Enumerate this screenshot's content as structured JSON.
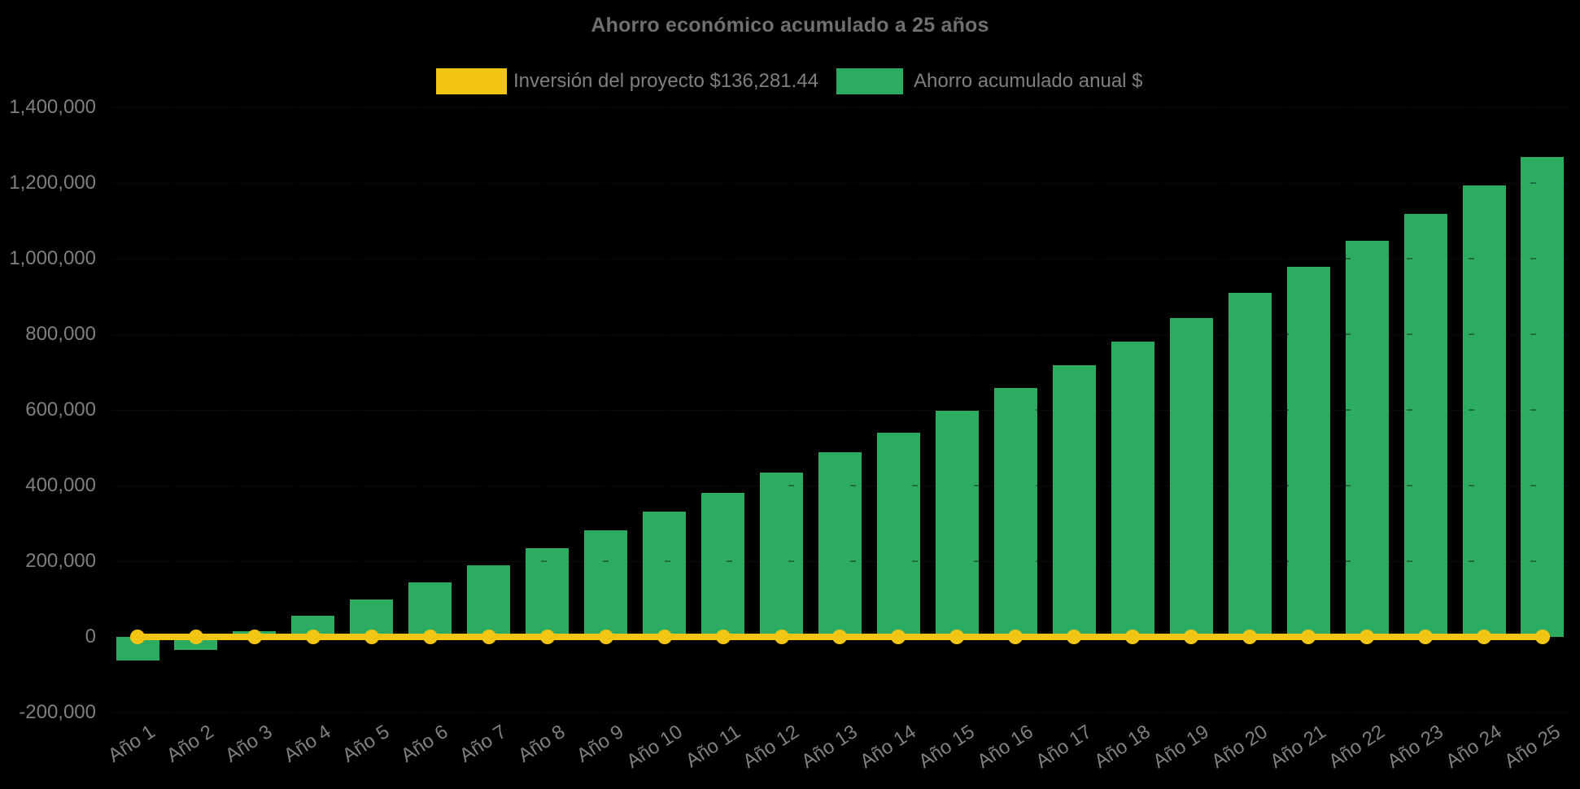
{
  "title": "Ahorro económico acumulado a 25 años",
  "legend": [
    {
      "label": "Inversión del proyecto $136,281.44",
      "color": "#F2C512",
      "marker": "line-swatch"
    },
    {
      "label": "Ahorro acumulado anual $",
      "color": "#2BAC60",
      "marker": "bar-swatch"
    }
  ],
  "colors": {
    "background": "#000000",
    "bar_green": "#2BAC60",
    "line_yellow": "#F2C512",
    "axis_text_gray": "#7f7f7f",
    "title_gray": "#6f6f6f"
  },
  "chart_data": {
    "type": "bar",
    "title": "Ahorro económico acumulado a 25 años",
    "categories": [
      "Año 1",
      "Año 2",
      "Año 3",
      "Año 4",
      "Año 5",
      "Año 6",
      "Año 7",
      "Año 8",
      "Año 9",
      "Año 10",
      "Año 11",
      "Año 12",
      "Año 13",
      "Año 14",
      "Año 15",
      "Año 16",
      "Año 17",
      "Año 18",
      "Año 19",
      "Año 20",
      "Año 21",
      "Año 22",
      "Año 23",
      "Año 24",
      "Año 25"
    ],
    "series": [
      {
        "name": "Ahorro acumulado anual $",
        "type": "bar",
        "color": "#2BAC60",
        "values": [
          -62000,
          -34000,
          16000,
          55000,
          99000,
          144000,
          189000,
          234000,
          282000,
          331000,
          381000,
          434000,
          488000,
          540000,
          598000,
          658000,
          718000,
          781000,
          843000,
          910000,
          979000,
          1047000,
          1118000,
          1194000,
          1269000
        ]
      },
      {
        "name": "Inversión del proyecto $136,281.44",
        "type": "line",
        "color": "#F2C512",
        "stated_value": 136281.44,
        "plotted_at_y": 0,
        "values": [
          0,
          0,
          0,
          0,
          0,
          0,
          0,
          0,
          0,
          0,
          0,
          0,
          0,
          0,
          0,
          0,
          0,
          0,
          0,
          0,
          0,
          0,
          0,
          0,
          0
        ]
      }
    ],
    "xlabel": "",
    "ylabel": "",
    "y_ticks": [
      "1,400,000",
      "1,200,000",
      "1,000,000",
      "800,000",
      "600,000",
      "400,000",
      "200,000",
      "0",
      "-200,000"
    ],
    "ylim": [
      -200000,
      1400000
    ],
    "grid": "hidden",
    "legend_position": "top-center",
    "x_tick_rotation_deg": -33
  }
}
